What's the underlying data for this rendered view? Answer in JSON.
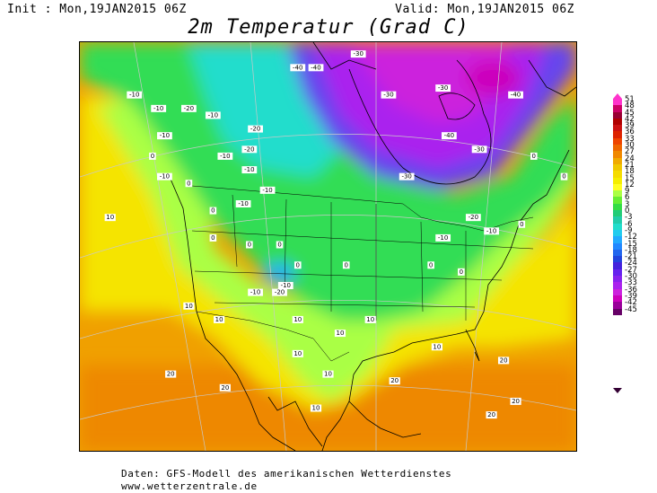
{
  "header": {
    "init": "Init : Mon,19JAN2015 06Z",
    "valid": "Valid: Mon,19JAN2015 06Z"
  },
  "title": "2m Temperatur (Grad C)",
  "footer": {
    "line1": "Daten: GFS-Modell des amerikanischen Wetterdienstes",
    "line2": "www.wetterzentrale.de"
  },
  "legend": {
    "labels": [
      "51",
      "48",
      "45",
      "42",
      "39",
      "36",
      "33",
      "30",
      "27",
      "24",
      "21",
      "18",
      "15",
      "12",
      "9",
      "6",
      "3",
      "0",
      "-3",
      "-6",
      "-9",
      "-12",
      "-15",
      "-18",
      "-21",
      "-24",
      "-27",
      "-30",
      "-33",
      "-36",
      "-39",
      "-42",
      "-45"
    ],
    "colors": [
      "#ff33cc",
      "#cc0066",
      "#990033",
      "#b00000",
      "#cc1111",
      "#dd2200",
      "#ee4400",
      "#ee6600",
      "#f08800",
      "#f0aa00",
      "#f0c800",
      "#f5dc00",
      "#f5ee00",
      "#ffff22",
      "#aaff44",
      "#66ee33",
      "#33dd44",
      "#22cc77",
      "#22ccaa",
      "#22ddcc",
      "#22ccee",
      "#22aaff",
      "#2288ff",
      "#2266ee",
      "#2244dd",
      "#4422dd",
      "#6622ee",
      "#8822ee",
      "#aa22ee",
      "#cc22dd",
      "#cc00bb",
      "#990099",
      "#660066"
    ]
  },
  "map_labels": [
    {
      "text": "-10",
      "lon": -131,
      "lat": 66
    },
    {
      "text": "-10",
      "lon": -127,
      "lat": 64
    },
    {
      "text": "-20",
      "lon": -122,
      "lat": 64
    },
    {
      "text": "-10",
      "lon": -118,
      "lat": 63
    },
    {
      "text": "-10",
      "lon": -126,
      "lat": 60
    },
    {
      "text": "-20",
      "lon": -111,
      "lat": 61
    },
    {
      "text": "-20",
      "lon": -112,
      "lat": 58
    },
    {
      "text": "-10",
      "lon": -116,
      "lat": 57
    },
    {
      "text": "-10",
      "lon": -112,
      "lat": 55
    },
    {
      "text": "-10",
      "lon": -109,
      "lat": 52
    },
    {
      "text": "-10",
      "lon": -113,
      "lat": 50
    },
    {
      "text": "-10",
      "lon": -126,
      "lat": 54
    },
    {
      "text": "0",
      "lon": -128,
      "lat": 57
    },
    {
      "text": "0",
      "lon": -122,
      "lat": 53
    },
    {
      "text": "0",
      "lon": -118,
      "lat": 49
    },
    {
      "text": "-40",
      "lon": -104,
      "lat": 70
    },
    {
      "text": "-40",
      "lon": -101,
      "lat": 70
    },
    {
      "text": "-30",
      "lon": -94,
      "lat": 72
    },
    {
      "text": "-30",
      "lon": -89,
      "lat": 66
    },
    {
      "text": "-30",
      "lon": -80,
      "lat": 67
    },
    {
      "text": "-40",
      "lon": -68,
      "lat": 66
    },
    {
      "text": "-40",
      "lon": -79,
      "lat": 60
    },
    {
      "text": "-30",
      "lon": -74,
      "lat": 58
    },
    {
      "text": "-30",
      "lon": -86,
      "lat": 54
    },
    {
      "text": "-20",
      "lon": -75,
      "lat": 48
    },
    {
      "text": "-10",
      "lon": -80,
      "lat": 45
    },
    {
      "text": "-10",
      "lon": -72,
      "lat": 46
    },
    {
      "text": "0",
      "lon": -65,
      "lat": 57
    },
    {
      "text": "0",
      "lon": -60,
      "lat": 54
    },
    {
      "text": "0",
      "lon": -67,
      "lat": 47
    },
    {
      "text": "10",
      "lon": -135,
      "lat": 48
    },
    {
      "text": "0",
      "lon": -118,
      "lat": 45
    },
    {
      "text": "0",
      "lon": -112,
      "lat": 44
    },
    {
      "text": "0",
      "lon": -107,
      "lat": 44
    },
    {
      "text": "0",
      "lon": -104,
      "lat": 41
    },
    {
      "text": "-10",
      "lon": -106,
      "lat": 38
    },
    {
      "text": "-20",
      "lon": -107,
      "lat": 37
    },
    {
      "text": "-10",
      "lon": -111,
      "lat": 37
    },
    {
      "text": "0",
      "lon": -96,
      "lat": 41
    },
    {
      "text": "0",
      "lon": -82,
      "lat": 41
    },
    {
      "text": "0",
      "lon": -77,
      "lat": 40
    },
    {
      "text": "10",
      "lon": -122,
      "lat": 35
    },
    {
      "text": "10",
      "lon": -117,
      "lat": 33
    },
    {
      "text": "10",
      "lon": -104,
      "lat": 33
    },
    {
      "text": "10",
      "lon": -92,
      "lat": 33
    },
    {
      "text": "10",
      "lon": -97,
      "lat": 31
    },
    {
      "text": "10",
      "lon": -81,
      "lat": 29
    },
    {
      "text": "10",
      "lon": -104,
      "lat": 28
    },
    {
      "text": "10",
      "lon": -99,
      "lat": 25
    },
    {
      "text": "10",
      "lon": -101,
      "lat": 20
    },
    {
      "text": "20",
      "lon": -125,
      "lat": 25
    },
    {
      "text": "20",
      "lon": -116,
      "lat": 23
    },
    {
      "text": "20",
      "lon": -88,
      "lat": 24
    },
    {
      "text": "20",
      "lon": -70,
      "lat": 27
    },
    {
      "text": "20",
      "lon": -68,
      "lat": 21
    },
    {
      "text": "20",
      "lon": -72,
      "lat": 19
    }
  ]
}
